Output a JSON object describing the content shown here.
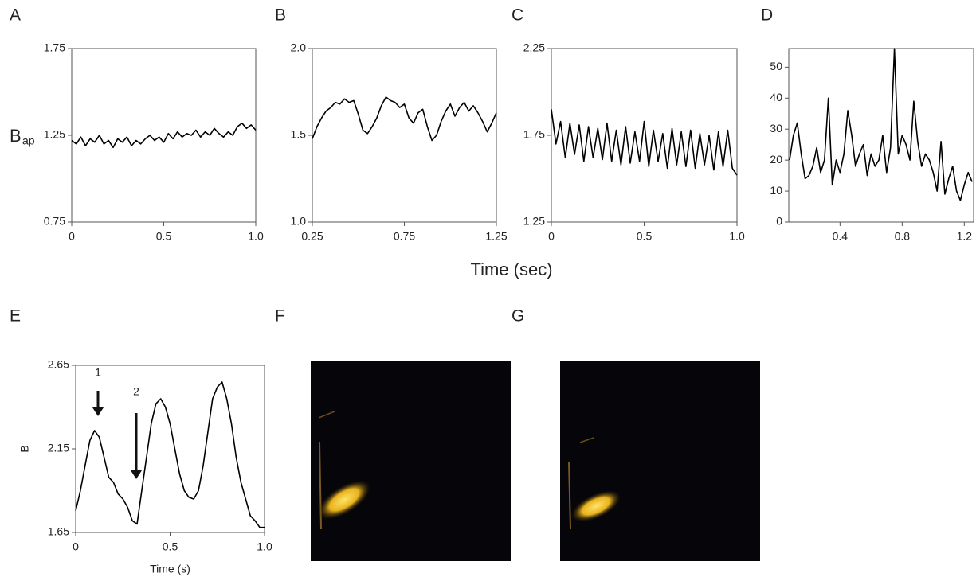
{
  "figure": {
    "xlabel": "Time (sec)",
    "panels": [
      "F",
      "G"
    ]
  },
  "chart_data": [
    {
      "label": "A",
      "type": "line",
      "ylabel": "B",
      "ylabel_sub": "ap",
      "color": "#000000",
      "xlim": [
        0,
        1
      ],
      "ylim": [
        0.75,
        1.75
      ],
      "xticks": [
        0,
        0.5,
        {
          "value": 1,
          "label": "1.0"
        }
      ],
      "yticks": [
        0.75,
        1.25,
        1.75
      ],
      "x": [
        0,
        0.025,
        0.05,
        0.075,
        0.1,
        0.125,
        0.15,
        0.175,
        0.2,
        0.225,
        0.25,
        0.275,
        0.3,
        0.325,
        0.35,
        0.375,
        0.4,
        0.425,
        0.45,
        0.475,
        0.5,
        0.525,
        0.55,
        0.575,
        0.6,
        0.625,
        0.65,
        0.675,
        0.7,
        0.725,
        0.75,
        0.775,
        0.8,
        0.825,
        0.85,
        0.875,
        0.9,
        0.925,
        0.95,
        0.975,
        1
      ],
      "values": [
        1.22,
        1.2,
        1.24,
        1.19,
        1.23,
        1.21,
        1.25,
        1.2,
        1.22,
        1.18,
        1.23,
        1.21,
        1.24,
        1.19,
        1.22,
        1.2,
        1.23,
        1.25,
        1.22,
        1.24,
        1.21,
        1.26,
        1.23,
        1.27,
        1.24,
        1.26,
        1.25,
        1.28,
        1.24,
        1.27,
        1.25,
        1.29,
        1.26,
        1.24,
        1.27,
        1.25,
        1.3,
        1.32,
        1.29,
        1.31,
        1.28
      ]
    },
    {
      "label": "B",
      "type": "line",
      "color": "#000000",
      "xlim": [
        0.25,
        1.25
      ],
      "ylim": [
        1,
        2
      ],
      "xticks": [
        0.25,
        0.75,
        1.25
      ],
      "yticks": [
        {
          "value": 1,
          "label": "1.0"
        },
        1.5,
        {
          "value": 2,
          "label": "2.0"
        }
      ],
      "x": [
        0.25,
        0.275,
        0.3,
        0.325,
        0.35,
        0.375,
        0.4,
        0.425,
        0.45,
        0.475,
        0.5,
        0.525,
        0.55,
        0.575,
        0.6,
        0.625,
        0.65,
        0.675,
        0.7,
        0.725,
        0.75,
        0.775,
        0.8,
        0.825,
        0.85,
        0.875,
        0.9,
        0.925,
        0.95,
        0.975,
        1,
        1.025,
        1.05,
        1.075,
        1.1,
        1.125,
        1.15,
        1.175,
        1.2,
        1.225,
        1.25
      ],
      "values": [
        1.48,
        1.55,
        1.6,
        1.64,
        1.66,
        1.69,
        1.68,
        1.71,
        1.69,
        1.7,
        1.62,
        1.53,
        1.51,
        1.55,
        1.6,
        1.67,
        1.72,
        1.7,
        1.69,
        1.66,
        1.68,
        1.6,
        1.57,
        1.63,
        1.65,
        1.55,
        1.47,
        1.5,
        1.58,
        1.64,
        1.68,
        1.61,
        1.66,
        1.69,
        1.64,
        1.67,
        1.63,
        1.58,
        1.52,
        1.57,
        1.63
      ]
    },
    {
      "label": "C",
      "type": "line",
      "color": "#000000",
      "xlim": [
        0,
        1
      ],
      "ylim": [
        1.25,
        2.25
      ],
      "xticks": [
        0,
        0.5,
        {
          "value": 1,
          "label": "1.0"
        }
      ],
      "yticks": [
        1.25,
        1.75,
        2.25
      ],
      "x": [
        0,
        0.025,
        0.05,
        0.075,
        0.1,
        0.125,
        0.15,
        0.175,
        0.2,
        0.225,
        0.25,
        0.275,
        0.3,
        0.325,
        0.35,
        0.375,
        0.4,
        0.425,
        0.45,
        0.475,
        0.5,
        0.525,
        0.55,
        0.575,
        0.6,
        0.625,
        0.65,
        0.675,
        0.7,
        0.725,
        0.75,
        0.775,
        0.8,
        0.825,
        0.85,
        0.875,
        0.9,
        0.925,
        0.95,
        0.975,
        1
      ],
      "values": [
        1.9,
        1.7,
        1.83,
        1.62,
        1.82,
        1.64,
        1.81,
        1.6,
        1.8,
        1.62,
        1.79,
        1.61,
        1.82,
        1.6,
        1.78,
        1.58,
        1.8,
        1.59,
        1.77,
        1.6,
        1.83,
        1.57,
        1.78,
        1.6,
        1.76,
        1.56,
        1.79,
        1.58,
        1.77,
        1.57,
        1.78,
        1.56,
        1.76,
        1.58,
        1.75,
        1.55,
        1.77,
        1.57,
        1.78,
        1.56,
        1.52
      ]
    },
    {
      "label": "D",
      "type": "line",
      "color": "#000000",
      "xlim": [
        0.07,
        1.26
      ],
      "ylim": [
        0,
        56
      ],
      "xticks": [
        0.4,
        0.8,
        1.2
      ],
      "yticks": [
        0,
        10,
        20,
        30,
        40,
        50
      ],
      "x": [
        0.075,
        0.1,
        0.125,
        0.15,
        0.175,
        0.2,
        0.225,
        0.25,
        0.275,
        0.3,
        0.325,
        0.35,
        0.375,
        0.4,
        0.425,
        0.45,
        0.475,
        0.5,
        0.525,
        0.55,
        0.575,
        0.6,
        0.625,
        0.65,
        0.675,
        0.7,
        0.725,
        0.75,
        0.775,
        0.8,
        0.825,
        0.85,
        0.875,
        0.9,
        0.925,
        0.95,
        0.975,
        1,
        1.025,
        1.05,
        1.075,
        1.1,
        1.125,
        1.15,
        1.175,
        1.2,
        1.225,
        1.25
      ],
      "values": [
        20,
        28,
        32,
        22,
        14,
        15,
        18,
        24,
        16,
        20,
        40,
        12,
        20,
        16,
        22,
        36,
        28,
        18,
        22,
        25,
        15,
        22,
        18,
        20,
        28,
        16,
        24,
        56,
        22,
        28,
        25,
        20,
        39,
        26,
        18,
        22,
        20,
        16,
        10,
        26,
        9,
        14,
        18,
        10,
        7,
        12,
        16,
        13
      ]
    },
    {
      "label": "E",
      "type": "line",
      "xlabel": "Time (s)",
      "ylabel": "B",
      "annotations": [
        "1",
        "2"
      ],
      "color": "#000000",
      "xlim": [
        0,
        1
      ],
      "ylim": [
        1.65,
        2.65
      ],
      "xticks": [
        0,
        0.5,
        {
          "value": 1,
          "label": "1.0"
        }
      ],
      "yticks": [
        1.65,
        2.15,
        2.65
      ],
      "x": [
        0,
        0.025,
        0.05,
        0.075,
        0.1,
        0.125,
        0.15,
        0.175,
        0.2,
        0.225,
        0.25,
        0.275,
        0.3,
        0.325,
        0.35,
        0.375,
        0.4,
        0.425,
        0.45,
        0.475,
        0.5,
        0.525,
        0.55,
        0.575,
        0.6,
        0.625,
        0.65,
        0.675,
        0.7,
        0.725,
        0.75,
        0.775,
        0.8,
        0.825,
        0.85,
        0.875,
        0.9,
        0.925,
        0.95,
        0.975,
        1
      ],
      "values": [
        1.78,
        1.9,
        2.05,
        2.2,
        2.26,
        2.22,
        2.1,
        1.98,
        1.95,
        1.88,
        1.85,
        1.8,
        1.72,
        1.7,
        1.9,
        2.1,
        2.3,
        2.42,
        2.45,
        2.4,
        2.3,
        2.15,
        2,
        1.9,
        1.86,
        1.85,
        1.9,
        2.05,
        2.25,
        2.45,
        2.52,
        2.55,
        2.45,
        2.3,
        2.1,
        1.95,
        1.85,
        1.75,
        1.72,
        1.68,
        1.68
      ]
    }
  ]
}
